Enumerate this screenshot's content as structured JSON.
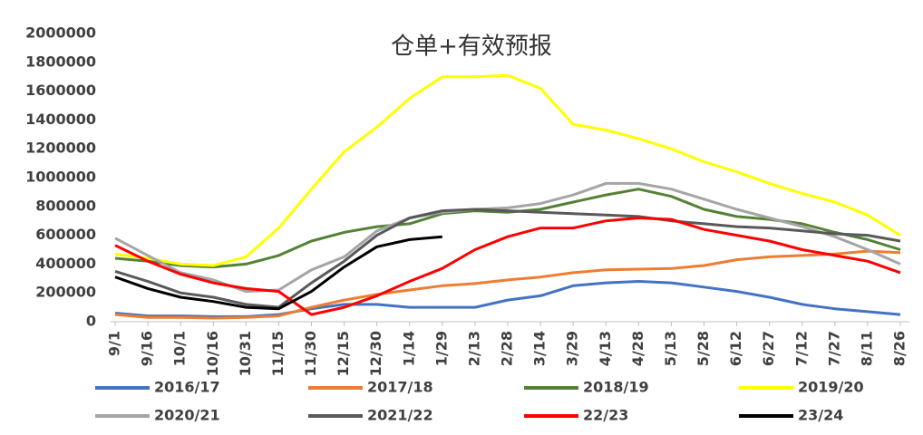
{
  "chart_data": {
    "type": "line",
    "title": "仓单+有效预报",
    "categories": [
      "9/1",
      "9/16",
      "10/1",
      "10/16",
      "10/31",
      "11/15",
      "11/30",
      "12/15",
      "12/30",
      "1/14",
      "1/29",
      "2/13",
      "2/28",
      "3/14",
      "3/29",
      "4/13",
      "4/28",
      "5/13",
      "5/28",
      "6/12",
      "6/27",
      "7/12",
      "7/27",
      "8/11",
      "8/26"
    ],
    "ylim": [
      0,
      2000000
    ],
    "yticks": [
      0,
      200000,
      400000,
      600000,
      800000,
      1000000,
      1200000,
      1400000,
      1600000,
      1800000,
      2000000
    ],
    "series": [
      {
        "name": "2016/17",
        "color": "#4472c4",
        "values": [
          60000,
          40000,
          40000,
          35000,
          35000,
          50000,
          90000,
          120000,
          120000,
          100000,
          100000,
          100000,
          150000,
          180000,
          250000,
          270000,
          280000,
          270000,
          240000,
          210000,
          170000,
          120000,
          90000,
          70000,
          50000
        ]
      },
      {
        "name": "2017/18",
        "color": "#ed7d31",
        "values": [
          50000,
          30000,
          30000,
          25000,
          30000,
          40000,
          100000,
          150000,
          190000,
          220000,
          250000,
          265000,
          290000,
          310000,
          340000,
          360000,
          365000,
          370000,
          390000,
          430000,
          450000,
          460000,
          470000,
          490000,
          480000
        ]
      },
      {
        "name": "2018/19",
        "color": "#548235",
        "values": [
          440000,
          420000,
          390000,
          380000,
          400000,
          460000,
          560000,
          620000,
          660000,
          680000,
          750000,
          770000,
          760000,
          780000,
          830000,
          880000,
          920000,
          870000,
          780000,
          730000,
          710000,
          680000,
          620000,
          570000,
          500000
        ]
      },
      {
        "name": "2019/20",
        "color": "#ffff00",
        "values": [
          470000,
          440000,
          400000,
          390000,
          450000,
          650000,
          920000,
          1180000,
          1350000,
          1550000,
          1700000,
          1700000,
          1710000,
          1620000,
          1370000,
          1330000,
          1270000,
          1200000,
          1110000,
          1040000,
          960000,
          890000,
          830000,
          740000,
          600000
        ]
      },
      {
        "name": "2020/21",
        "color": "#a5a5a5",
        "values": [
          580000,
          460000,
          340000,
          290000,
          210000,
          220000,
          360000,
          450000,
          630000,
          720000,
          760000,
          780000,
          790000,
          820000,
          880000,
          960000,
          960000,
          920000,
          850000,
          780000,
          720000,
          660000,
          590000,
          500000,
          400000
        ]
      },
      {
        "name": "2021/22",
        "color": "#595959",
        "values": [
          350000,
          280000,
          200000,
          170000,
          120000,
          100000,
          270000,
          420000,
          600000,
          720000,
          770000,
          780000,
          770000,
          760000,
          750000,
          740000,
          730000,
          700000,
          680000,
          660000,
          650000,
          630000,
          610000,
          600000,
          560000
        ]
      },
      {
        "name": "22/23",
        "color": "#ff0000",
        "values": [
          530000,
          420000,
          330000,
          270000,
          230000,
          210000,
          50000,
          100000,
          180000,
          280000,
          370000,
          500000,
          590000,
          650000,
          650000,
          700000,
          720000,
          710000,
          640000,
          600000,
          560000,
          500000,
          460000,
          420000,
          340000
        ]
      },
      {
        "name": "23/24",
        "color": "#000000",
        "values": [
          310000,
          230000,
          170000,
          140000,
          100000,
          90000,
          210000,
          380000,
          520000,
          570000,
          590000,
          null,
          null,
          null,
          null,
          null,
          null,
          null,
          null,
          null,
          null,
          null,
          null,
          null,
          null
        ]
      }
    ]
  }
}
